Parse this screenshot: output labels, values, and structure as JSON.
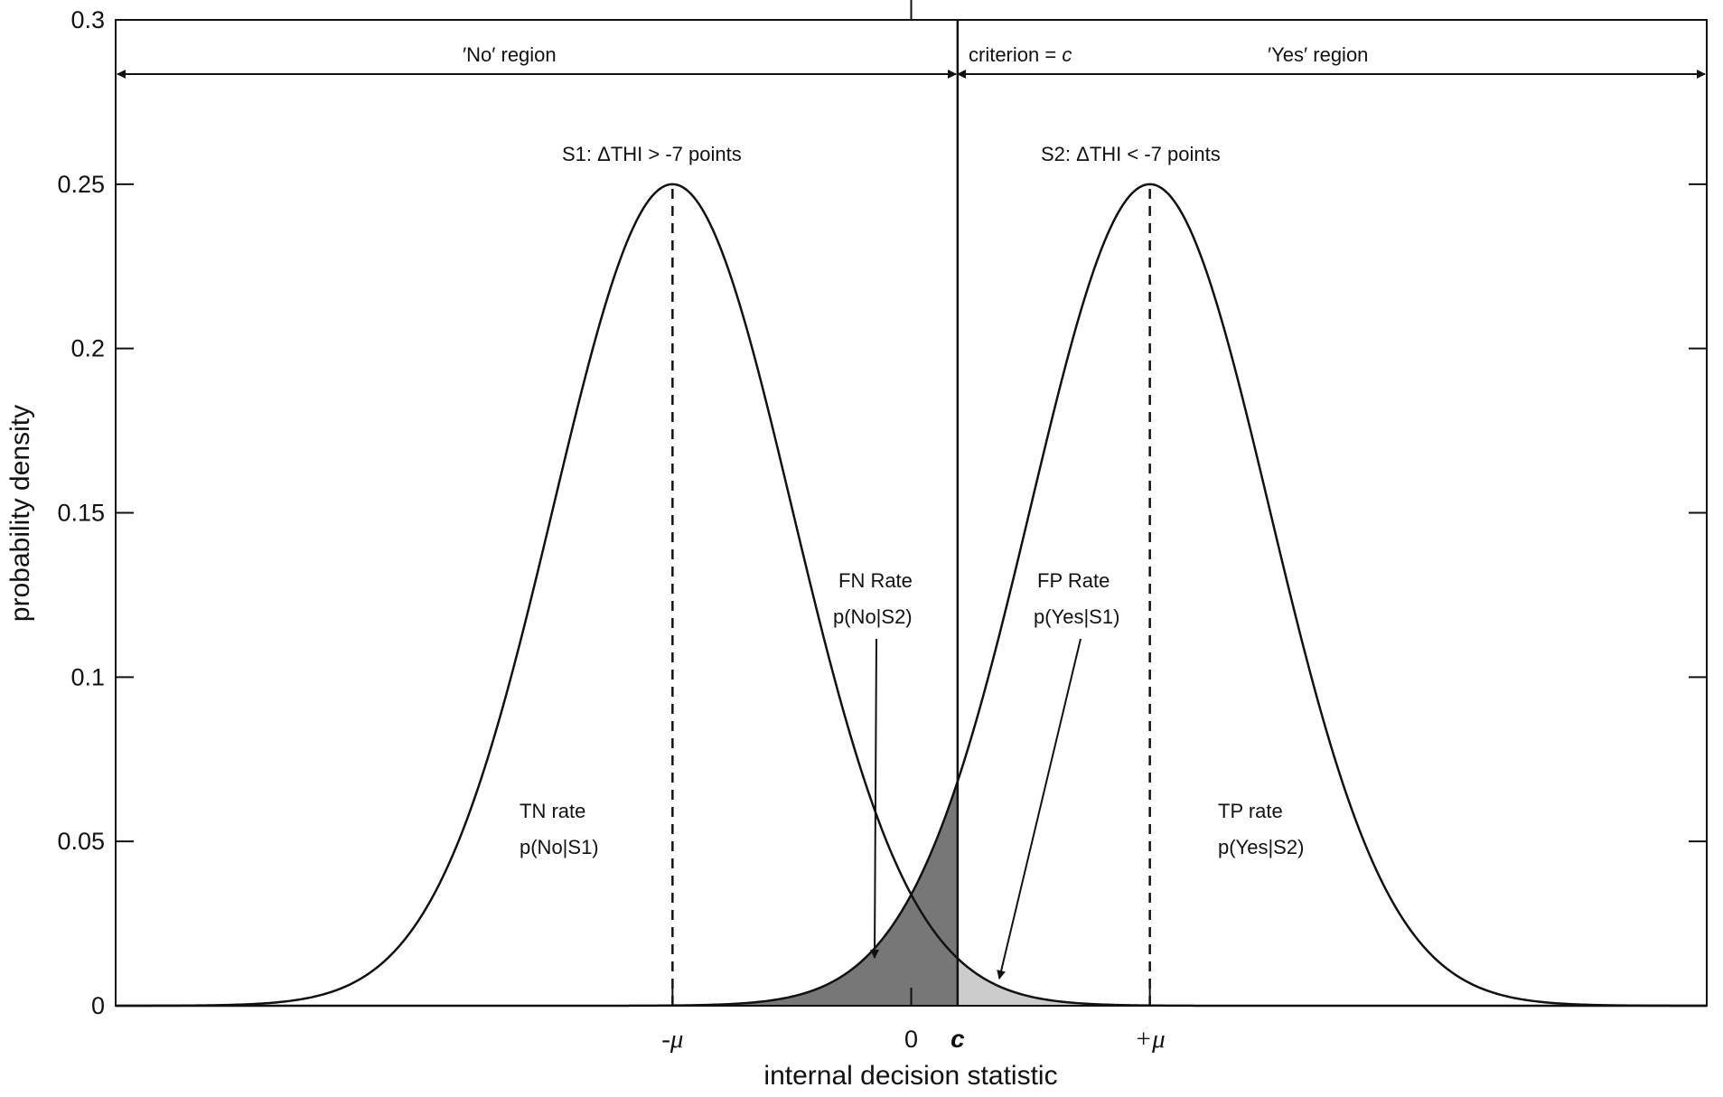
{
  "chart_data": {
    "type": "line",
    "xlabel": "internal decision statistic",
    "ylabel": "probability density",
    "ylim": [
      0,
      0.3
    ],
    "xlim": [
      -6,
      6
    ],
    "yticks": [
      "0",
      "0.05",
      "0.1",
      "0.15",
      "0.2",
      "0.25",
      "0.3"
    ],
    "xticks": [
      {
        "label": "-μ",
        "x": -1.8,
        "style": "symbol"
      },
      {
        "label": "0",
        "x": 0,
        "style": "plain"
      },
      {
        "label": "c",
        "x": 0.35,
        "style": "bold-italic"
      },
      {
        "label": "+μ",
        "x": 1.8,
        "style": "symbol"
      }
    ],
    "grid": false,
    "series": [
      {
        "mean": -1.8,
        "peak": 0.25,
        "sd": 0.9
      },
      {
        "mean": 1.8,
        "peak": 0.25,
        "sd": 0.9
      }
    ],
    "criterion": 0.35,
    "shading": [
      {
        "name": "FN",
        "color": "#777777"
      },
      {
        "name": "FP",
        "color": "#cccccc"
      }
    ],
    "annotations": {
      "no_region_prefix": "′No′",
      "no_region_word": " region",
      "criterion_prefix": "criterion = ",
      "criterion_symbol": "c",
      "yes_region_prefix": "′Yes′",
      "yes_region_word": " region",
      "s1": "S1: ΔTHI > -7 points",
      "s2": "S2: ΔTHI < -7 points",
      "fn_line1": "FN Rate",
      "fn_line2": "p(No|S2)",
      "fp_line1": "FP Rate",
      "fp_line2": "p(Yes|S1)",
      "tn_line1": "TN rate",
      "tn_line2": "p(No|S1)",
      "tp_line1": "TP rate",
      "tp_line2": "p(Yes|S2)"
    }
  }
}
